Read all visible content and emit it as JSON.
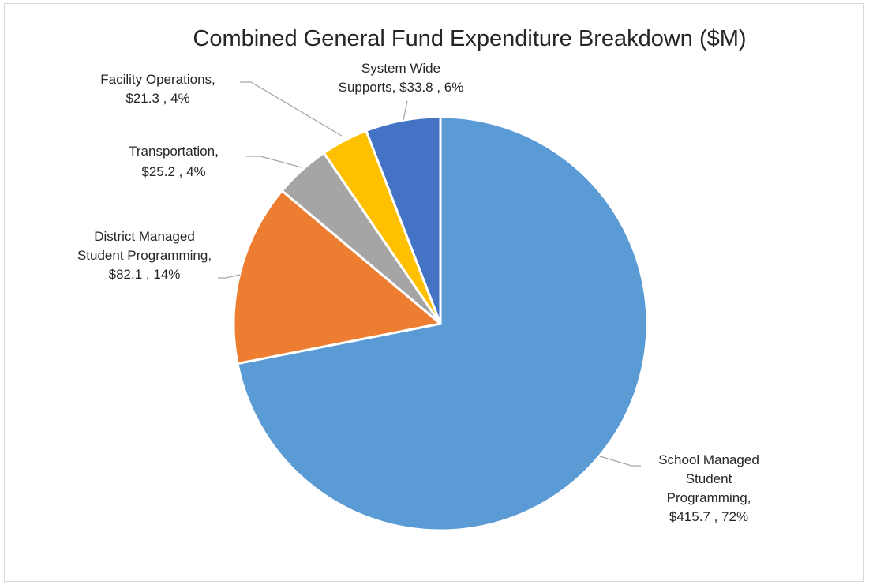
{
  "chart_data": {
    "type": "pie",
    "title": "Combined General Fund Expenditure Breakdown ($M)",
    "slices": [
      {
        "name": "School Managed Student Programming",
        "value": 415.7,
        "percent": "72%",
        "color": "#5b9bd5",
        "label_lines": [
          "School Managed",
          "Student",
          "Programming,",
          "$415.7 , 72%"
        ]
      },
      {
        "name": "District Managed Student Programming",
        "value": 82.1,
        "percent": "14%",
        "color": "#ed7d31",
        "label_lines": [
          "District Managed",
          "Student Programming,",
          "$82.1 , 14%"
        ]
      },
      {
        "name": "Transportation",
        "value": 25.2,
        "percent": "4%",
        "color": "#a5a5a5",
        "label_lines": [
          "Transportation,",
          "$25.2 , 4%"
        ]
      },
      {
        "name": "Facility Operations",
        "value": 21.3,
        "percent": "4%",
        "color": "#ffc000",
        "label_lines": [
          "Facility Operations,",
          "$21.3 , 4%"
        ]
      },
      {
        "name": "System Wide Supports",
        "value": 33.8,
        "percent": "6%",
        "color": "#4472c4",
        "label_lines": [
          "System Wide",
          "Supports,  $33.8 , 6%"
        ]
      }
    ]
  }
}
